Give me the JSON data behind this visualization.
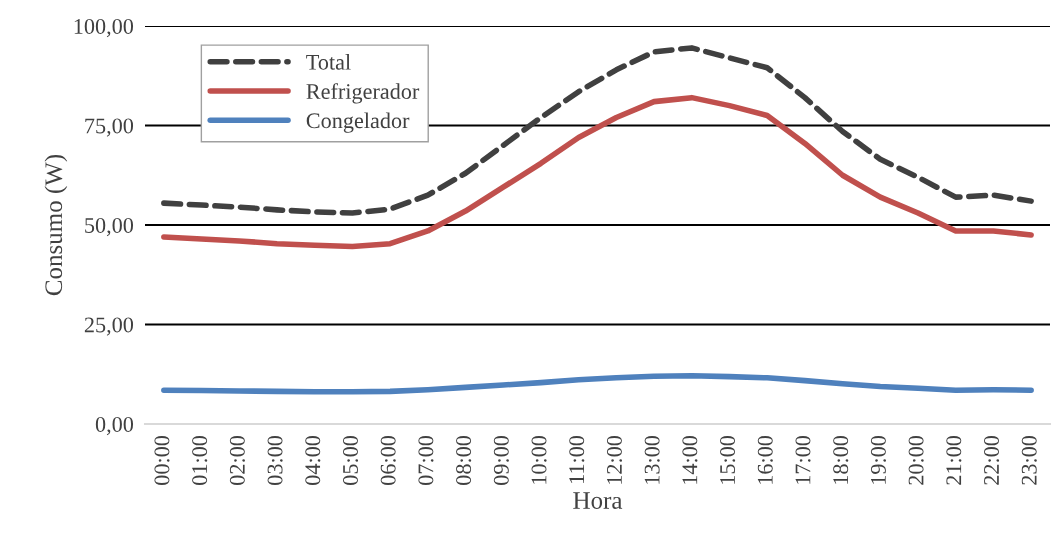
{
  "chart_data": {
    "type": "line",
    "xlabel": "Hora",
    "ylabel": "Consumo (W)",
    "categories": [
      "00:00",
      "01:00",
      "02:00",
      "03:00",
      "04:00",
      "05:00",
      "06:00",
      "07:00",
      "08:00",
      "09:00",
      "10:00",
      "11:00",
      "12:00",
      "13:00",
      "14:00",
      "15:00",
      "16:00",
      "17:00",
      "18:00",
      "19:00",
      "20:00",
      "21:00",
      "22:00",
      "23:00"
    ],
    "series": [
      {
        "name": "Total",
        "color": "#404040",
        "line_style": "dashed",
        "values": [
          55.5,
          55,
          54.5,
          53.8,
          53.3,
          53,
          54,
          57.5,
          63,
          70,
          77,
          83.5,
          89,
          93.5,
          94.5,
          92,
          89.5,
          82,
          73.5,
          66.5,
          62,
          57,
          57.5,
          56
        ]
      },
      {
        "name": "Refrigerador",
        "color": "#c0504d",
        "line_style": "solid",
        "values": [
          47,
          46.5,
          46,
          45.3,
          44.9,
          44.6,
          45.3,
          48.5,
          53.5,
          59.5,
          65.5,
          72,
          77,
          81,
          82,
          80,
          77.5,
          70.5,
          62.5,
          57,
          53,
          48.5,
          48.5,
          47.5
        ]
      },
      {
        "name": "Congelador",
        "color": "#4f81bd",
        "line_style": "solid",
        "values": [
          8.5,
          8.4,
          8.3,
          8.2,
          8.1,
          8.1,
          8.2,
          8.6,
          9.2,
          9.8,
          10.4,
          11.1,
          11.6,
          12,
          12.1,
          11.9,
          11.6,
          10.9,
          10.1,
          9.4,
          9,
          8.5,
          8.6,
          8.5
        ]
      }
    ],
    "ylim": [
      0,
      100
    ],
    "yticks": [
      {
        "value": 0,
        "label": "0,00"
      },
      {
        "value": 25,
        "label": "25,00"
      },
      {
        "value": 50,
        "label": "50,00"
      },
      {
        "value": 75,
        "label": "75,00"
      },
      {
        "value": 100,
        "label": "100,00"
      }
    ],
    "grid": "y",
    "legend": "top left",
    "marker": "none"
  }
}
